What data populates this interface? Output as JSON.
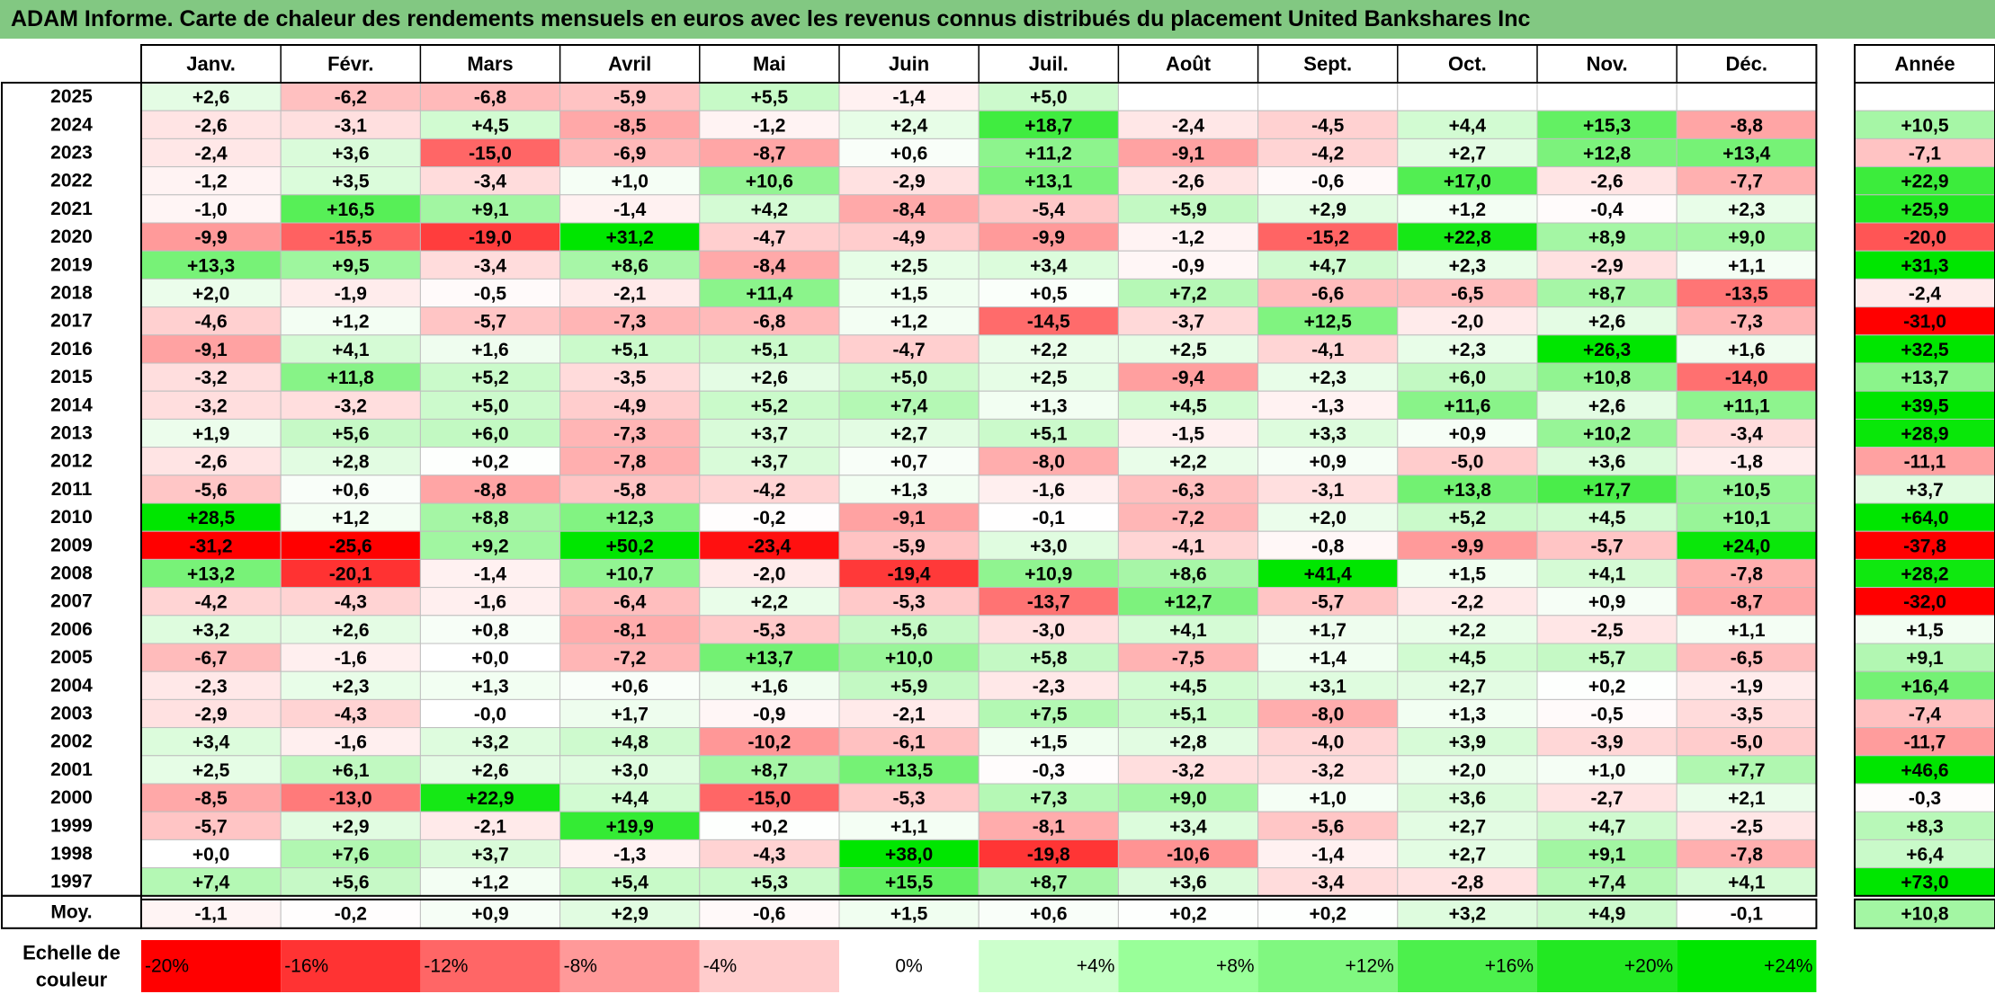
{
  "title": "ADAM Informe. Carte de chaleur des rendements mensuels en euros avec les revenus connus distribués du placement United Bankshares Inc",
  "chart_data": {
    "type": "heatmap",
    "months": [
      "Janv.",
      "Févr.",
      "Mars",
      "Avril",
      "Mai",
      "Juin",
      "Juil.",
      "Août",
      "Sept.",
      "Oct.",
      "Nov.",
      "Déc."
    ],
    "year_header": "Année",
    "avg_label": "Moy.",
    "rows": [
      {
        "year": "2025",
        "values": [
          "+2,6",
          "-6,2",
          "-6,8",
          "-5,9",
          "+5,5",
          "-1,4",
          "+5,0",
          "",
          "",
          "",
          "",
          ""
        ],
        "annual": ""
      },
      {
        "year": "2024",
        "values": [
          "-2,6",
          "-3,1",
          "+4,5",
          "-8,5",
          "-1,2",
          "+2,4",
          "+18,7",
          "-2,4",
          "-4,5",
          "+4,4",
          "+15,3",
          "-8,8"
        ],
        "annual": "+10,5"
      },
      {
        "year": "2023",
        "values": [
          "-2,4",
          "+3,6",
          "-15,0",
          "-6,9",
          "-8,7",
          "+0,6",
          "+11,2",
          "-9,1",
          "-4,2",
          "+2,7",
          "+12,8",
          "+13,4"
        ],
        "annual": "-7,1"
      },
      {
        "year": "2022",
        "values": [
          "-1,2",
          "+3,5",
          "-3,4",
          "+1,0",
          "+10,6",
          "-2,9",
          "+13,1",
          "-2,6",
          "-0,6",
          "+17,0",
          "-2,6",
          "-7,7"
        ],
        "annual": "+22,9"
      },
      {
        "year": "2021",
        "values": [
          "-1,0",
          "+16,5",
          "+9,1",
          "-1,4",
          "+4,2",
          "-8,4",
          "-5,4",
          "+5,9",
          "+2,9",
          "+1,2",
          "-0,4",
          "+2,3"
        ],
        "annual": "+25,9"
      },
      {
        "year": "2020",
        "values": [
          "-9,9",
          "-15,5",
          "-19,0",
          "+31,2",
          "-4,7",
          "-4,9",
          "-9,9",
          "-1,2",
          "-15,2",
          "+22,8",
          "+8,9",
          "+9,0"
        ],
        "annual": "-20,0"
      },
      {
        "year": "2019",
        "values": [
          "+13,3",
          "+9,5",
          "-3,4",
          "+8,6",
          "-8,4",
          "+2,5",
          "+3,4",
          "-0,9",
          "+4,7",
          "+2,3",
          "-2,9",
          "+1,1"
        ],
        "annual": "+31,3"
      },
      {
        "year": "2018",
        "values": [
          "+2,0",
          "-1,9",
          "-0,5",
          "-2,1",
          "+11,4",
          "+1,5",
          "+0,5",
          "+7,2",
          "-6,6",
          "-6,5",
          "+8,7",
          "-13,5"
        ],
        "annual": "-2,4"
      },
      {
        "year": "2017",
        "values": [
          "-4,6",
          "+1,2",
          "-5,7",
          "-7,3",
          "-6,8",
          "+1,2",
          "-14,5",
          "-3,7",
          "+12,5",
          "-2,0",
          "+2,6",
          "-7,3"
        ],
        "annual": "-31,0"
      },
      {
        "year": "2016",
        "values": [
          "-9,1",
          "+4,1",
          "+1,6",
          "+5,1",
          "+5,1",
          "-4,7",
          "+2,2",
          "+2,5",
          "-4,1",
          "+2,3",
          "+26,3",
          "+1,6"
        ],
        "annual": "+32,5"
      },
      {
        "year": "2015",
        "values": [
          "-3,2",
          "+11,8",
          "+5,2",
          "-3,5",
          "+2,6",
          "+5,0",
          "+2,5",
          "-9,4",
          "+2,3",
          "+6,0",
          "+10,8",
          "-14,0"
        ],
        "annual": "+13,7"
      },
      {
        "year": "2014",
        "values": [
          "-3,2",
          "-3,2",
          "+5,0",
          "-4,9",
          "+5,2",
          "+7,4",
          "+1,3",
          "+4,5",
          "-1,3",
          "+11,6",
          "+2,6",
          "+11,1"
        ],
        "annual": "+39,5"
      },
      {
        "year": "2013",
        "values": [
          "+1,9",
          "+5,6",
          "+6,0",
          "-7,3",
          "+3,7",
          "+2,7",
          "+5,1",
          "-1,5",
          "+3,3",
          "+0,9",
          "+10,2",
          "-3,4"
        ],
        "annual": "+28,9"
      },
      {
        "year": "2012",
        "values": [
          "-2,6",
          "+2,8",
          "+0,2",
          "-7,8",
          "+3,7",
          "+0,7",
          "-8,0",
          "+2,2",
          "+0,9",
          "-5,0",
          "+3,6",
          "-1,8"
        ],
        "annual": "-11,1"
      },
      {
        "year": "2011",
        "values": [
          "-5,6",
          "+0,6",
          "-8,8",
          "-5,8",
          "-4,2",
          "+1,3",
          "-1,6",
          "-6,3",
          "-3,1",
          "+13,8",
          "+17,7",
          "+10,5"
        ],
        "annual": "+3,7"
      },
      {
        "year": "2010",
        "values": [
          "+28,5",
          "+1,2",
          "+8,8",
          "+12,3",
          "-0,2",
          "-9,1",
          "-0,1",
          "-7,2",
          "+2,0",
          "+5,2",
          "+4,5",
          "+10,1"
        ],
        "annual": "+64,0"
      },
      {
        "year": "2009",
        "values": [
          "-31,2",
          "-25,6",
          "+9,2",
          "+50,2",
          "-23,4",
          "-5,9",
          "+3,0",
          "-4,1",
          "-0,8",
          "-9,9",
          "-5,7",
          "+24,0"
        ],
        "annual": "-37,8"
      },
      {
        "year": "2008",
        "values": [
          "+13,2",
          "-20,1",
          "-1,4",
          "+10,7",
          "-2,0",
          "-19,4",
          "+10,9",
          "+8,6",
          "+41,4",
          "+1,5",
          "+4,1",
          "-7,8"
        ],
        "annual": "+28,2"
      },
      {
        "year": "2007",
        "values": [
          "-4,2",
          "-4,3",
          "-1,6",
          "-6,4",
          "+2,2",
          "-5,3",
          "-13,7",
          "+12,7",
          "-5,7",
          "-2,2",
          "+0,9",
          "-8,7"
        ],
        "annual": "-32,0"
      },
      {
        "year": "2006",
        "values": [
          "+3,2",
          "+2,6",
          "+0,8",
          "-8,1",
          "-5,3",
          "+5,6",
          "-3,0",
          "+4,1",
          "+1,7",
          "+2,2",
          "-2,5",
          "+1,1"
        ],
        "annual": "+1,5"
      },
      {
        "year": "2005",
        "values": [
          "-6,7",
          "-1,6",
          "+0,0",
          "-7,2",
          "+13,7",
          "+10,0",
          "+5,8",
          "-7,5",
          "+1,4",
          "+4,5",
          "+5,7",
          "-6,5"
        ],
        "annual": "+9,1"
      },
      {
        "year": "2004",
        "values": [
          "-2,3",
          "+2,3",
          "+1,3",
          "+0,6",
          "+1,6",
          "+5,9",
          "-2,3",
          "+4,5",
          "+3,1",
          "+2,7",
          "+0,2",
          "-1,9"
        ],
        "annual": "+16,4"
      },
      {
        "year": "2003",
        "values": [
          "-2,9",
          "-4,3",
          "-0,0",
          "+1,7",
          "-0,9",
          "-2,1",
          "+7,5",
          "+5,1",
          "-8,0",
          "+1,3",
          "-0,5",
          "-3,5"
        ],
        "annual": "-7,4"
      },
      {
        "year": "2002",
        "values": [
          "+3,4",
          "-1,6",
          "+3,2",
          "+4,8",
          "-10,2",
          "-6,1",
          "+1,5",
          "+2,8",
          "-4,0",
          "+3,9",
          "-3,9",
          "-5,0"
        ],
        "annual": "-11,7"
      },
      {
        "year": "2001",
        "values": [
          "+2,5",
          "+6,1",
          "+2,6",
          "+3,0",
          "+8,7",
          "+13,5",
          "-0,3",
          "-3,2",
          "-3,2",
          "+2,0",
          "+1,0",
          "+7,7"
        ],
        "annual": "+46,6"
      },
      {
        "year": "2000",
        "values": [
          "-8,5",
          "-13,0",
          "+22,9",
          "+4,4",
          "-15,0",
          "-5,3",
          "+7,3",
          "+9,0",
          "+1,0",
          "+3,6",
          "-2,7",
          "+2,1"
        ],
        "annual": "-0,3"
      },
      {
        "year": "1999",
        "values": [
          "-5,7",
          "+2,9",
          "-2,1",
          "+19,9",
          "+0,2",
          "+1,1",
          "-8,1",
          "+3,4",
          "-5,6",
          "+2,7",
          "+4,7",
          "-2,5"
        ],
        "annual": "+8,3"
      },
      {
        "year": "1998",
        "values": [
          "+0,0",
          "+7,6",
          "+3,7",
          "-1,3",
          "-4,3",
          "+38,0",
          "-19,8",
          "-10,6",
          "-1,4",
          "+2,7",
          "+9,1",
          "-7,8"
        ],
        "annual": "+6,4"
      },
      {
        "year": "1997",
        "values": [
          "+7,4",
          "+5,6",
          "+1,2",
          "+5,4",
          "+5,3",
          "+15,5",
          "+8,7",
          "+3,6",
          "-3,4",
          "-2,8",
          "+7,4",
          "+4,1"
        ],
        "annual": "+73,0"
      }
    ],
    "averages": [
      "-1,1",
      "-0,2",
      "+0,9",
      "+2,9",
      "-0,6",
      "+1,5",
      "+0,6",
      "+0,2",
      "+0,2",
      "+3,2",
      "+4,9",
      "-0,1"
    ],
    "average_annual": "+10,8",
    "scale": {
      "label_line1": "Echelle de",
      "label_line2": "couleur",
      "stops": [
        {
          "label": "-20%",
          "color": "#ff0000",
          "align": "left"
        },
        {
          "label": "-16%",
          "color": "#ff3333",
          "align": "left"
        },
        {
          "label": "-12%",
          "color": "#ff6666",
          "align": "left"
        },
        {
          "label": "-8%",
          "color": "#ff9999",
          "align": "left"
        },
        {
          "label": "-4%",
          "color": "#ffcccc",
          "align": "left"
        },
        {
          "label": "0%",
          "color": "#ffffff",
          "align": "center"
        },
        {
          "label": "+4%",
          "color": "#ccffcc",
          "align": "right"
        },
        {
          "label": "+8%",
          "color": "#99ff99",
          "align": "right"
        },
        {
          "label": "+12%",
          "color": "#80f780",
          "align": "right"
        },
        {
          "label": "+16%",
          "color": "#4cf04c",
          "align": "right"
        },
        {
          "label": "+20%",
          "color": "#22e822",
          "align": "right"
        },
        {
          "label": "+24%",
          "color": "#00e600",
          "align": "right"
        }
      ]
    },
    "colors": {
      "negative_max": "#ff0000",
      "neutral": "#ffffff",
      "positive_max": "#00e600",
      "title_bar": "#82c882"
    }
  }
}
